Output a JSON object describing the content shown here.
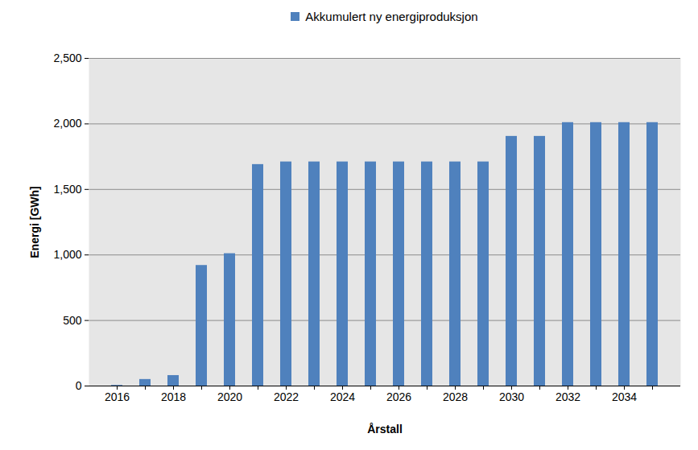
{
  "chart_data": {
    "type": "bar",
    "x_label": "Årstall",
    "y_label": "Energi [GWh]",
    "categories": [
      "2016",
      null,
      "2018",
      null,
      "2020",
      null,
      "2022",
      null,
      "2024",
      null,
      "2026",
      null,
      "2028",
      null,
      "2030",
      null,
      "2032",
      null,
      "2034",
      null
    ],
    "series": [
      {
        "name": "Akkumulert ny energiproduksjon",
        "color": "#4f81bd",
        "values": [
          5,
          50,
          80,
          920,
          1010,
          1690,
          1710,
          1710,
          1710,
          1710,
          1710,
          1710,
          1710,
          1710,
          1905,
          1905,
          2010,
          2010,
          2010,
          2010
        ]
      }
    ],
    "ylim": [
      0,
      2500
    ],
    "yticks": [
      0,
      500,
      1000,
      1500,
      2000,
      2500
    ],
    "grid": true,
    "legend": "top"
  }
}
